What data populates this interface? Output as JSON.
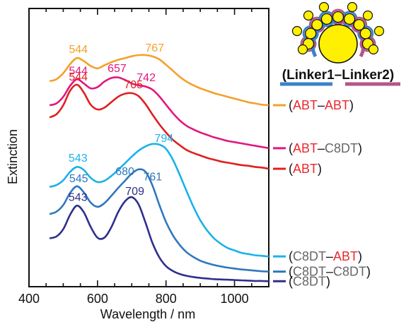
{
  "chart_data": {
    "type": "line",
    "xlabel": "Wavelength / nm",
    "ylabel": "Extinction",
    "xlim": [
      400,
      1100
    ],
    "ylim": [
      0,
      9.2
    ],
    "x_ticks": [
      400,
      600,
      800,
      1000
    ],
    "x_tick_labels": [
      "400",
      "600",
      "800",
      "1000"
    ],
    "y_tick_labels_shown": false,
    "grid": false,
    "legend_position": "right",
    "x": [
      400,
      420,
      440,
      460,
      480,
      500,
      520,
      540,
      560,
      580,
      600,
      620,
      640,
      660,
      680,
      700,
      720,
      740,
      760,
      780,
      800,
      820,
      840,
      860,
      880,
      900,
      920,
      940,
      960,
      980,
      1000,
      1020,
      1040,
      1060,
      1080,
      1100
    ],
    "series": [
      {
        "color": "#f5a02a",
        "legend": [
          {
            "text": "(",
            "color": "#111111"
          },
          {
            "text": "ABT",
            "color": "#e8282c"
          },
          {
            "text": "–",
            "color": "#111111"
          },
          {
            "text": "ABT",
            "color": "#e8282c"
          },
          {
            "text": ")",
            "color": "#111111"
          }
        ],
        "values": [
          null,
          null,
          null,
          6.8,
          6.86,
          7.06,
          7.36,
          7.56,
          7.46,
          7.3,
          7.22,
          7.32,
          7.42,
          7.5,
          7.56,
          7.62,
          7.66,
          7.66,
          7.62,
          7.52,
          7.34,
          7.14,
          6.94,
          6.78,
          6.66,
          6.56,
          6.48,
          6.4,
          6.34,
          6.28,
          6.22,
          6.16,
          6.1,
          6.06,
          6.02,
          6.0
        ],
        "peaks": [
          {
            "x": 544,
            "label": "544"
          },
          {
            "x": 767,
            "label": "767"
          }
        ]
      },
      {
        "color": "#e0187e",
        "legend": [
          {
            "text": "(",
            "color": "#111111"
          },
          {
            "text": "ABT",
            "color": "#e8282c"
          },
          {
            "text": "–",
            "color": "#111111"
          },
          {
            "text": "C8DT",
            "color": "#666666"
          },
          {
            "text": ")",
            "color": "#111111"
          }
        ],
        "values": [
          null,
          null,
          null,
          6.0,
          6.06,
          6.28,
          6.64,
          6.86,
          6.72,
          6.56,
          6.6,
          6.78,
          6.9,
          6.92,
          6.84,
          6.72,
          6.66,
          6.62,
          6.52,
          6.3,
          6.02,
          5.74,
          5.5,
          5.32,
          5.2,
          5.1,
          5.02,
          4.94,
          4.88,
          4.82,
          4.78,
          4.74,
          4.7,
          4.66,
          4.62,
          4.58
        ],
        "peaks": [
          {
            "x": 544,
            "label": "544"
          },
          {
            "x": 657,
            "label": "657"
          },
          {
            "x": 742,
            "label": "742"
          }
        ]
      },
      {
        "color": "#e02020",
        "legend": [
          {
            "text": "(",
            "color": "#111111"
          },
          {
            "text": "ABT",
            "color": "#e8282c"
          },
          {
            "text": ")",
            "color": "#111111"
          }
        ],
        "values": [
          null,
          null,
          null,
          5.6,
          5.7,
          6.0,
          6.48,
          6.68,
          6.42,
          6.02,
          5.86,
          5.92,
          6.1,
          6.28,
          6.38,
          6.4,
          6.3,
          6.04,
          5.7,
          5.38,
          5.1,
          4.86,
          4.68,
          4.52,
          4.42,
          4.34,
          4.26,
          4.2,
          4.14,
          4.1,
          4.06,
          4.02,
          4.0,
          3.96,
          3.94,
          3.9
        ],
        "peaks": [
          {
            "x": 544,
            "label": "544"
          },
          {
            "x": 705,
            "label": "705"
          }
        ]
      },
      {
        "color": "#1ab2e8",
        "legend": [
          {
            "text": "(",
            "color": "#111111"
          },
          {
            "text": "C8DT",
            "color": "#666666"
          },
          {
            "text": "–",
            "color": "#111111"
          },
          {
            "text": "ABT",
            "color": "#e8282c"
          },
          {
            "text": ")",
            "color": "#111111"
          }
        ],
        "values": [
          null,
          null,
          null,
          3.3,
          3.36,
          3.52,
          3.8,
          3.96,
          3.86,
          3.6,
          3.46,
          3.5,
          3.66,
          3.86,
          4.08,
          4.3,
          4.5,
          4.64,
          4.72,
          4.7,
          4.56,
          4.2,
          3.7,
          3.16,
          2.64,
          2.2,
          1.86,
          1.6,
          1.42,
          1.28,
          1.2,
          1.12,
          1.08,
          1.04,
          1.02,
          1.0
        ],
        "peaks": [
          {
            "x": 543,
            "label": "543"
          },
          {
            "x": 794,
            "label": "794"
          }
        ]
      },
      {
        "color": "#2f78bd",
        "legend": [
          {
            "text": "(",
            "color": "#111111"
          },
          {
            "text": "C8DT",
            "color": "#666666"
          },
          {
            "text": "–",
            "color": "#111111"
          },
          {
            "text": "C8DT",
            "color": "#666666"
          },
          {
            "text": ")",
            "color": "#111111"
          }
        ],
        "values": [
          null,
          null,
          null,
          2.4,
          2.48,
          2.7,
          3.1,
          3.32,
          3.12,
          2.78,
          2.64,
          2.76,
          3.0,
          3.26,
          3.5,
          3.74,
          3.88,
          3.8,
          3.36,
          2.72,
          2.14,
          1.7,
          1.38,
          1.14,
          0.98,
          0.86,
          0.78,
          0.72,
          0.67,
          0.63,
          0.6,
          0.57,
          0.55,
          0.53,
          0.51,
          0.5
        ],
        "peaks": [
          {
            "x": 545,
            "label": "545"
          },
          {
            "x": 680,
            "label": "680"
          },
          {
            "x": 761,
            "label": "761"
          }
        ]
      },
      {
        "color": "#2e2f8c",
        "legend": [
          {
            "text": "(",
            "color": "#111111"
          },
          {
            "text": "C8DT",
            "color": "#666666"
          },
          {
            "text": ")",
            "color": "#111111"
          }
        ],
        "values": [
          null,
          null,
          null,
          1.6,
          1.66,
          1.9,
          2.38,
          2.68,
          2.46,
          1.98,
          1.62,
          1.62,
          1.96,
          2.46,
          2.82,
          2.96,
          2.72,
          2.12,
          1.46,
          0.98,
          0.68,
          0.52,
          0.42,
          0.36,
          0.32,
          0.29,
          0.27,
          0.25,
          0.24,
          0.23,
          0.22,
          0.21,
          0.2,
          0.19,
          0.19,
          0.18
        ],
        "peaks": [
          {
            "x": 543,
            "label": "543"
          },
          {
            "x": 709,
            "label": "709"
          }
        ]
      }
    ],
    "inset": {
      "legend_text": [
        {
          "text": "(",
          "color": "#111111"
        },
        {
          "text": "Linker1",
          "color": "#111111"
        },
        {
          "text": "–",
          "color": "#111111"
        },
        {
          "text": "Linker2",
          "color": "#111111"
        },
        {
          "text": ")",
          "color": "#111111"
        }
      ],
      "linker1_color": "#3a84c9",
      "linker2_color": "#b5558c",
      "particle_color": "#ffef00"
    }
  }
}
